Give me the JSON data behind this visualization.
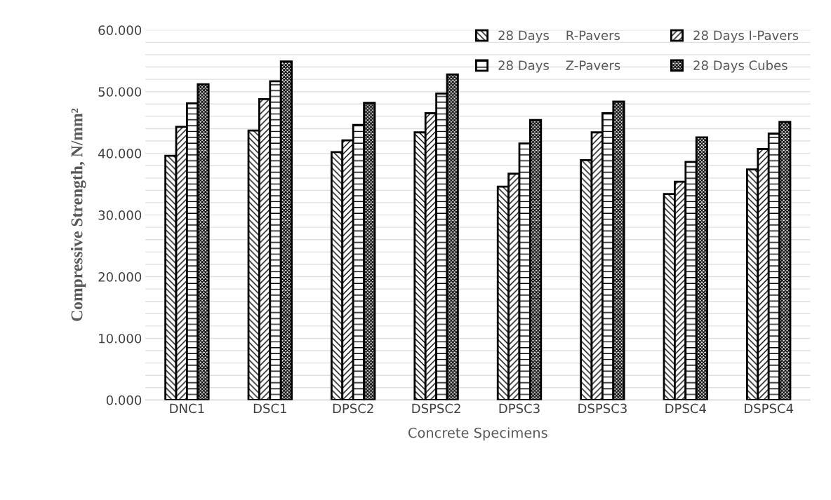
{
  "chart_data": {
    "type": "bar",
    "xlabel": "Concrete Specimens",
    "ylabel": "Compressive Strength, N/mm²",
    "categories": [
      "DNC1",
      "DSC1",
      "DPSC2",
      "DSPSC2",
      "DPSC3",
      "DSPSC3",
      "DPSC4",
      "DSPSC4"
    ],
    "series": [
      {
        "name": "28 Days    R-Pavers",
        "color": "#000000",
        "values": [
          39.6,
          43.7,
          40.2,
          43.4,
          34.6,
          38.9,
          33.4,
          37.4
        ]
      },
      {
        "name": "28 Days I-Pavers",
        "color": "#000000",
        "values": [
          44.3,
          48.8,
          42.1,
          46.5,
          36.7,
          43.4,
          35.4,
          40.7
        ]
      },
      {
        "name": "28 Days    Z-Pavers",
        "color": "#000000",
        "values": [
          48.1,
          51.7,
          44.6,
          49.7,
          41.6,
          46.5,
          38.6,
          43.2
        ]
      },
      {
        "name": "28 Days Cubes",
        "color": "#000000",
        "values": [
          51.2,
          54.9,
          48.2,
          52.8,
          45.4,
          48.4,
          42.6,
          45.1
        ]
      }
    ],
    "ylim": [
      0,
      60
    ],
    "yticks": [
      {
        "value": 0,
        "label": "0.000"
      },
      {
        "value": 2,
        "label": null
      },
      {
        "value": 4,
        "label": null
      },
      {
        "value": 6,
        "label": null
      },
      {
        "value": 8,
        "label": null
      },
      {
        "value": 10,
        "label": "10.000"
      },
      {
        "value": 12,
        "label": null
      },
      {
        "value": 14,
        "label": null
      },
      {
        "value": 16,
        "label": null
      },
      {
        "value": 18,
        "label": null
      },
      {
        "value": 20,
        "label": "20.000"
      },
      {
        "value": 22,
        "label": null
      },
      {
        "value": 24,
        "label": null
      },
      {
        "value": 26,
        "label": null
      },
      {
        "value": 28,
        "label": null
      },
      {
        "value": 30,
        "label": "30.000"
      },
      {
        "value": 32,
        "label": null
      },
      {
        "value": 34,
        "label": null
      },
      {
        "value": 36,
        "label": null
      },
      {
        "value": 38,
        "label": null
      },
      {
        "value": 40,
        "label": "40.000"
      },
      {
        "value": 42,
        "label": null
      },
      {
        "value": 44,
        "label": null
      },
      {
        "value": 46,
        "label": null
      },
      {
        "value": 48,
        "label": null
      },
      {
        "value": 50,
        "label": "50.000"
      },
      {
        "value": 52,
        "label": null
      },
      {
        "value": 54,
        "label": null
      },
      {
        "value": 56,
        "label": null
      },
      {
        "value": 58,
        "label": null
      },
      {
        "value": 60,
        "label": "60.000"
      }
    ],
    "grid": "y",
    "legend": "top right"
  }
}
